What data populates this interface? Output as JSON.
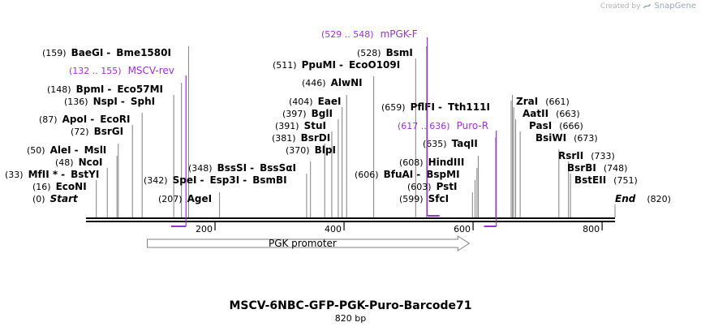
{
  "credit": {
    "prefix": "Created by",
    "brand": "SnapGene"
  },
  "map": {
    "title": "MSCV-6NBC-GFP-PGK-Puro-Barcode71",
    "length_label": "820 bp",
    "length_bp": 820,
    "ticks": [
      {
        "bp": 200,
        "label": "200"
      },
      {
        "bp": 400,
        "label": "400"
      },
      {
        "bp": 600,
        "label": "600"
      },
      {
        "bp": 800,
        "label": "800"
      }
    ],
    "colors": {
      "backbone": "#000000",
      "primer": "#9b30d0",
      "feature": "#808080",
      "line": "#808080"
    },
    "sites": [
      {
        "pos": "(0)",
        "bp": 0,
        "names": [
          "Start"
        ],
        "italic": true
      },
      {
        "pos": "(16)",
        "bp": 16,
        "names": [
          "EcoNI"
        ]
      },
      {
        "pos": "(33)",
        "bp": 33,
        "names": [
          "MfII *",
          "BstYI"
        ]
      },
      {
        "pos": "(48)",
        "bp": 48,
        "names": [
          "NcoI"
        ]
      },
      {
        "pos": "(50)",
        "bp": 50,
        "names": [
          "AleI",
          "MslI"
        ]
      },
      {
        "pos": "(72)",
        "bp": 72,
        "names": [
          "BsrGI"
        ]
      },
      {
        "pos": "(87)",
        "bp": 87,
        "names": [
          "ApoI",
          "EcoRI"
        ]
      },
      {
        "pos": "(136)",
        "bp": 136,
        "names": [
          "NspI",
          "SphI"
        ]
      },
      {
        "pos": "(148)",
        "bp": 148,
        "names": [
          "BpmI",
          "Eco57MI"
        ]
      },
      {
        "pos": "(159)",
        "bp": 159,
        "names": [
          "BaeGI",
          "Bme1580I"
        ]
      },
      {
        "pos": "(207)",
        "bp": 207,
        "names": [
          "AgeI"
        ]
      },
      {
        "pos": "(342)",
        "bp": 342,
        "names": [
          "SpeI",
          "Esp3I",
          "BsmBI"
        ]
      },
      {
        "pos": "(348)",
        "bp": 348,
        "names": [
          "BssSI",
          "BssSαI"
        ]
      },
      {
        "pos": "(370)",
        "bp": 370,
        "names": [
          "BlpI"
        ]
      },
      {
        "pos": "(381)",
        "bp": 381,
        "names": [
          "BsrDI"
        ]
      },
      {
        "pos": "(391)",
        "bp": 391,
        "names": [
          "StuI"
        ]
      },
      {
        "pos": "(397)",
        "bp": 397,
        "names": [
          "BglI"
        ]
      },
      {
        "pos": "(404)",
        "bp": 404,
        "names": [
          "EaeI"
        ]
      },
      {
        "pos": "(446)",
        "bp": 446,
        "names": [
          "AlwNI"
        ]
      },
      {
        "pos": "(511)",
        "bp": 511,
        "names": [
          "PpuMI",
          "EcoO109I"
        ]
      },
      {
        "pos": "(528)",
        "bp": 528,
        "names": [
          "BsmI"
        ]
      },
      {
        "pos": "(599)",
        "bp": 599,
        "names": [
          "SfcI"
        ]
      },
      {
        "pos": "(603)",
        "bp": 603,
        "names": [
          "PstI"
        ]
      },
      {
        "pos": "(606)",
        "bp": 606,
        "names": [
          "BfuAI",
          "BspMI"
        ]
      },
      {
        "pos": "(608)",
        "bp": 608,
        "names": [
          "HindIII"
        ]
      },
      {
        "pos": "(635)",
        "bp": 635,
        "names": [
          "TaqII"
        ]
      },
      {
        "pos": "(659)",
        "bp": 659,
        "names": [
          "PflFI",
          "Tth111I"
        ]
      },
      {
        "pos": "(661)",
        "bp": 661,
        "names": [
          "ZraI"
        ]
      },
      {
        "pos": "(663)",
        "bp": 663,
        "names": [
          "AatII"
        ]
      },
      {
        "pos": "(666)",
        "bp": 666,
        "names": [
          "PasI"
        ]
      },
      {
        "pos": "(673)",
        "bp": 673,
        "names": [
          "BsiWI"
        ]
      },
      {
        "pos": "(733)",
        "bp": 733,
        "names": [
          "RsrII"
        ]
      },
      {
        "pos": "(748)",
        "bp": 748,
        "names": [
          "BsrBI"
        ]
      },
      {
        "pos": "(751)",
        "bp": 751,
        "names": [
          "BstEII"
        ]
      },
      {
        "pos": "(820)",
        "bp": 820,
        "names": [
          "End"
        ],
        "italic": true
      }
    ],
    "primers": [
      {
        "name": "mPGK-F",
        "range": "(529 .. 548)",
        "start": 529,
        "end": 548,
        "strand": "forward"
      },
      {
        "name": "MSCV-rev",
        "range": "(132 .. 155)",
        "start": 132,
        "end": 155,
        "strand": "reverse"
      },
      {
        "name": "Puro-R",
        "range": "(617 .. 636)",
        "start": 617,
        "end": 636,
        "strand": "reverse"
      }
    ],
    "features": [
      {
        "name": "PGK promoter",
        "start": 95,
        "end": 594,
        "strand": "forward"
      }
    ]
  }
}
